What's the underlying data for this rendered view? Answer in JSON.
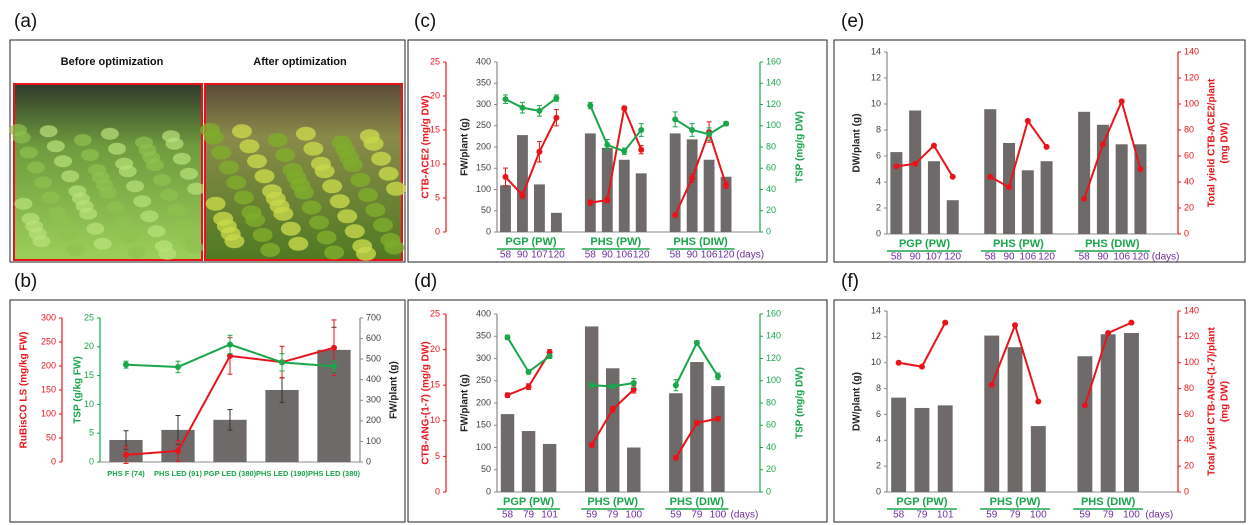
{
  "photo_panel": {
    "label": "(a)",
    "captions": [
      "Before optimization",
      "After optimization"
    ]
  },
  "chart_data": [
    {
      "type": "bar_line",
      "panel_label": "(b)",
      "categories": [
        "PHS F (74)",
        "PHS LED (91)",
        "PGP LED (380)",
        "PHS LED (190)",
        "PHS LED (380)"
      ],
      "ylim": [
        0,
        700
      ],
      "yticks": [
        0,
        100,
        200,
        300,
        400,
        500,
        600,
        700
      ],
      "ylabel": "FW/plant (g)",
      "y2lim": [
        0,
        25
      ],
      "y2ticks": [
        0,
        5,
        10,
        15,
        20,
        25
      ],
      "y2label": "TSP (g/kg FW)",
      "y3lim": [
        0,
        300
      ],
      "y3ticks": [
        0,
        50,
        100,
        150,
        200,
        250,
        300
      ],
      "y3label": "RuBisCO LS (mg/kg FW)",
      "series": [
        {
          "kind": "bar",
          "axis": "y",
          "color": "#6f6a6a",
          "values": [
            107,
            156,
            205,
            350,
            545
          ],
          "errors": [
            45,
            70,
            50,
            60,
            110
          ]
        },
        {
          "kind": "line",
          "axis": "y3",
          "color": "#e8141a",
          "values": [
            15,
            23,
            221,
            208,
            238
          ],
          "errors": [
            18,
            22,
            38,
            33,
            58
          ]
        },
        {
          "kind": "line",
          "axis": "y2",
          "color": "#1aa64a",
          "values": [
            16.9,
            16.5,
            20.4,
            17.3,
            16.6
          ],
          "errors": [
            0.6,
            1,
            1.6,
            1.5,
            1
          ]
        }
      ]
    },
    {
      "type": "bar_line",
      "panel_label": "(c)",
      "categories": [
        "58",
        "90",
        "107",
        "120",
        "58",
        "90",
        "106",
        "120",
        "58",
        "90",
        "106",
        "120"
      ],
      "groups": [
        "PGP (PW)",
        "PHS (PW)",
        "PHS (DIW)"
      ],
      "xlabel": "(days)",
      "ylim": [
        0,
        400
      ],
      "yticks": [
        0,
        50,
        100,
        150,
        200,
        250,
        300,
        350,
        400
      ],
      "ylabel": "FW/plant (g)",
      "y2lim": [
        0,
        160
      ],
      "y2ticks": [
        0,
        20,
        40,
        60,
        80,
        100,
        120,
        140,
        160
      ],
      "y2label": "TSP (mg/g DW)",
      "y3lim": [
        0,
        25
      ],
      "y3ticks": [
        0,
        5,
        10,
        15,
        20,
        25
      ],
      "y3label": "CTB-ACE2 (mg/g DW)",
      "series": [
        {
          "kind": "bar",
          "axis": "y",
          "color": "#6f6a6a",
          "values": [
            110,
            228,
            112,
            45,
            232,
            198,
            170,
            138,
            232,
            218,
            170,
            130
          ]
        },
        {
          "kind": "line",
          "axis": "y3",
          "color": "#e8141a",
          "values": [
            8.1,
            5.4,
            11.8,
            16.8,
            4.3,
            4.7,
            18.2,
            12.1,
            2.5,
            7.9,
            14.7,
            6.9
          ],
          "errors": [
            1.3,
            0.5,
            1.5,
            1.2,
            0.4,
            0.4,
            0.3,
            0.6,
            0.3,
            0.6,
            1.5,
            0.5
          ]
        },
        {
          "kind": "line",
          "axis": "y2",
          "color": "#1aa64a",
          "values": [
            125,
            117,
            114,
            126,
            119,
            82,
            76,
            96,
            106,
            96,
            92,
            102
          ],
          "errors": [
            4,
            5,
            5,
            3,
            3,
            5,
            3,
            6,
            7,
            6,
            6,
            2
          ]
        }
      ]
    },
    {
      "type": "bar_line",
      "panel_label": "(d)",
      "categories": [
        "58",
        "79",
        "101",
        "59",
        "79",
        "100",
        "59",
        "79",
        "100"
      ],
      "groups": [
        "PGP (PW)",
        "PHS (PW)",
        "PHS (DIW)"
      ],
      "xlabel": "(days)",
      "ylim": [
        0,
        400
      ],
      "yticks": [
        0,
        50,
        100,
        150,
        200,
        250,
        300,
        350,
        400
      ],
      "ylabel": "FW/plant (g)",
      "y2lim": [
        0,
        160
      ],
      "y2ticks": [
        0,
        20,
        40,
        60,
        80,
        100,
        120,
        140,
        160
      ],
      "y2label": "TSP (mg/g DW)",
      "y3lim": [
        0,
        25
      ],
      "y3ticks": [
        0,
        5,
        10,
        15,
        20,
        25
      ],
      "y3label": "CTB-ANG-(1-7) (mg/g DW)",
      "series": [
        {
          "kind": "bar",
          "axis": "y",
          "color": "#6f6a6a",
          "values": [
            175,
            137,
            108,
            372,
            278,
            100,
            222,
            292,
            238
          ]
        },
        {
          "kind": "line",
          "axis": "y3",
          "color": "#e8141a",
          "values": [
            13.6,
            14.8,
            19.6,
            6.6,
            11.6,
            14.4,
            4.8,
            9.7,
            10.3
          ],
          "errors": [
            0.3,
            0.4,
            0.4,
            0.3,
            0.4,
            0.5,
            0.3,
            0.3,
            0.3
          ]
        },
        {
          "kind": "line",
          "axis": "y2",
          "color": "#1aa64a",
          "values": [
            139,
            108,
            122,
            96,
            95,
            98,
            96,
            134,
            104
          ],
          "errors": [
            2,
            2,
            2,
            2,
            2,
            4,
            5,
            2,
            3
          ]
        }
      ]
    },
    {
      "type": "bar_line",
      "panel_label": "(e)",
      "categories": [
        "58",
        "90",
        "107",
        "120",
        "58",
        "90",
        "106",
        "120",
        "58",
        "90",
        "106",
        "120"
      ],
      "groups": [
        "PGP (PW)",
        "PHS (PW)",
        "PHS (DIW)"
      ],
      "xlabel": "(days)",
      "ylim": [
        0,
        14
      ],
      "yticks": [
        0,
        2,
        4,
        6,
        8,
        10,
        12,
        14
      ],
      "ylabel": "DW/plant (g)",
      "y2lim": [
        0,
        140
      ],
      "y2ticks": [
        0,
        20,
        40,
        60,
        80,
        100,
        120,
        140
      ],
      "y2label": [
        "Total yield CTB-ACE2/plant",
        "(mg DW)"
      ],
      "series": [
        {
          "kind": "bar",
          "axis": "y",
          "color": "#6f6a6a",
          "values": [
            6.3,
            9.5,
            5.6,
            2.6,
            9.6,
            7.0,
            4.9,
            5.6,
            9.4,
            8.4,
            6.9,
            6.9
          ]
        },
        {
          "kind": "line",
          "axis": "y2",
          "color": "#e8141a",
          "values": [
            52,
            54,
            68,
            44,
            44,
            36,
            87,
            67,
            27,
            69,
            102,
            50
          ]
        }
      ]
    },
    {
      "type": "bar_line",
      "panel_label": "(f)",
      "categories": [
        "58",
        "79",
        "101",
        "59",
        "79",
        "100",
        "59",
        "79",
        "100"
      ],
      "groups": [
        "PGP (PW)",
        "PHS (PW)",
        "PHS (DIW)"
      ],
      "xlabel": "(days)",
      "ylim": [
        0,
        14
      ],
      "yticks": [
        0,
        2,
        4,
        6,
        8,
        10,
        12,
        14
      ],
      "ylabel": "DW/plant (g)",
      "y2lim": [
        0,
        140
      ],
      "y2ticks": [
        0,
        20,
        40,
        60,
        80,
        100,
        120,
        140
      ],
      "y2label": [
        "Total yield CTB-ANG-(1-7)/plant",
        "(mg DW)"
      ],
      "series": [
        {
          "kind": "bar",
          "axis": "y",
          "color": "#6f6a6a",
          "values": [
            7.3,
            6.5,
            6.7,
            12.1,
            11.2,
            5.1,
            10.5,
            12.2,
            12.3
          ]
        },
        {
          "kind": "line",
          "axis": "y2",
          "color": "#e8141a",
          "values": [
            100,
            97,
            131,
            83,
            129,
            70,
            67,
            123,
            131
          ]
        }
      ]
    }
  ]
}
